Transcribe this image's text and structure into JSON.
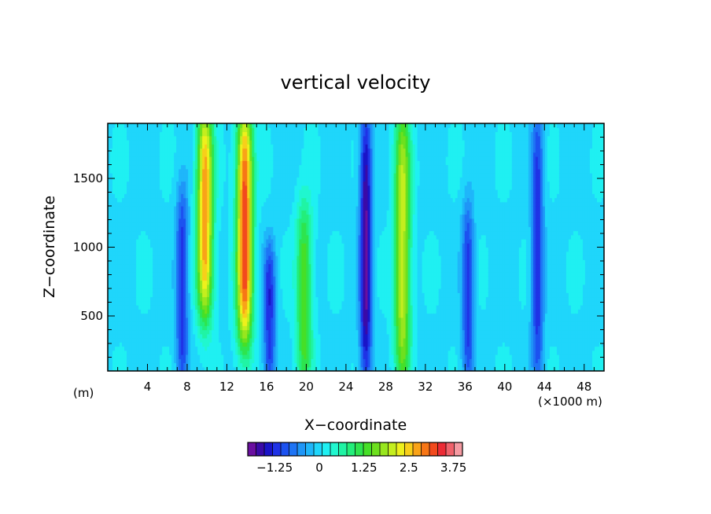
{
  "chart_data": {
    "type": "heatmap",
    "title": "vertical velocity",
    "xlabel": "X−coordinate",
    "ylabel": "Z−coordinate",
    "x_unit_note": "(×1000 m)",
    "y_unit_note": "(m)",
    "x_range": [
      0,
      50
    ],
    "y_range": [
      100,
      1900
    ],
    "x_ticks": [
      4,
      8,
      12,
      16,
      20,
      24,
      28,
      32,
      36,
      40,
      44,
      48
    ],
    "x_tick_labels": [
      "4",
      "8",
      "12",
      "16",
      "20",
      "24",
      "28",
      "32",
      "36",
      "40",
      "44",
      "48"
    ],
    "y_ticks": [
      500,
      1000,
      1500
    ],
    "y_tick_labels": [
      "500",
      "1000",
      "1500"
    ],
    "colorbar": {
      "min": -2.0,
      "max": 4.0,
      "step": 0.25,
      "tick_values": [
        -1.25,
        0,
        1.25,
        2.5,
        3.75
      ],
      "tick_labels": [
        "−1.25",
        "0",
        "1.25",
        "2.5",
        "3.75"
      ],
      "colors": [
        "#6a0fa0",
        "#3a0aa8",
        "#1a14c8",
        "#1f33e6",
        "#1c52f0",
        "#1e74f5",
        "#1f96f7",
        "#1fb6fa",
        "#1fd6fb",
        "#1ff0f2",
        "#20f7cf",
        "#20f4a4",
        "#23ee7a",
        "#2ee44e",
        "#46df27",
        "#6de01e",
        "#98e61e",
        "#c4ee1e",
        "#eef01c",
        "#f8cf1a",
        "#f9a318",
        "#f77616",
        "#f24a1d",
        "#ec2b35",
        "#f0626b",
        "#f59aa2"
      ]
    },
    "features": [
      {
        "kind": "updraft",
        "x": 9.8,
        "z_top": 1900,
        "z_bottom": 600,
        "peak": 3.0
      },
      {
        "kind": "updraft",
        "x": 13.8,
        "z_top": 1900,
        "z_bottom": 400,
        "peak": 3.5
      },
      {
        "kind": "updraft",
        "x": 19.8,
        "z_top": 1200,
        "z_bottom": 100,
        "peak": 1.5
      },
      {
        "kind": "updraft",
        "x": 29.7,
        "z_top": 1900,
        "z_bottom": 100,
        "peak": 2.2
      },
      {
        "kind": "downdraft",
        "x": 26.0,
        "z_top": 1900,
        "z_bottom": 100,
        "peak": -2.0
      },
      {
        "kind": "downdraft",
        "x": 7.5,
        "z_top": 1300,
        "z_bottom": 100,
        "peak": -1.4
      },
      {
        "kind": "downdraft",
        "x": 16.3,
        "z_top": 900,
        "z_bottom": 100,
        "peak": -1.4
      },
      {
        "kind": "downdraft",
        "x": 36.3,
        "z_top": 1200,
        "z_bottom": 100,
        "peak": -1.3
      },
      {
        "kind": "downdraft",
        "x": 43.3,
        "z_top": 1900,
        "z_bottom": 100,
        "peak": -1.4
      }
    ]
  }
}
